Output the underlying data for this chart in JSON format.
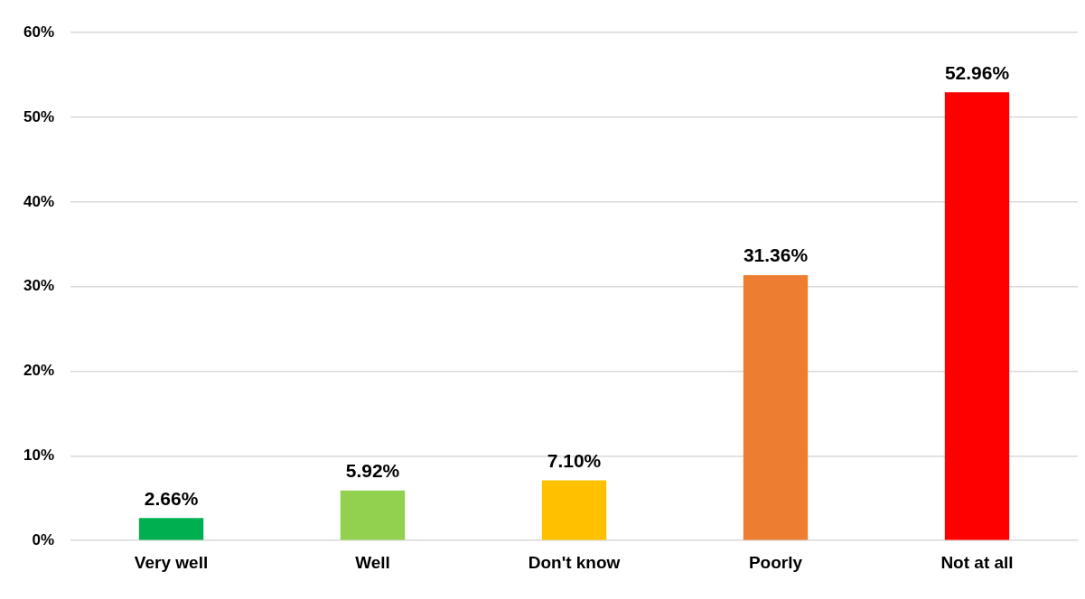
{
  "chart_data": {
    "type": "bar",
    "categories": [
      "Very well",
      "Well",
      "Don't know",
      "Poorly",
      "Not at all"
    ],
    "values": [
      2.66,
      5.92,
      7.1,
      31.36,
      52.96
    ],
    "colors": [
      "#00b050",
      "#92d050",
      "#ffc000",
      "#ed7d31",
      "#ff0000"
    ],
    "value_labels": [
      "2.66%",
      "5.92%",
      "7.10%",
      "31.36%",
      "52.96%"
    ],
    "ylim": [
      0,
      60
    ],
    "yticks": [
      {
        "value": 0,
        "label": "0%"
      },
      {
        "value": 10,
        "label": "10%"
      },
      {
        "value": 20,
        "label": "20%"
      },
      {
        "value": 30,
        "label": "30%"
      },
      {
        "value": 40,
        "label": "40%"
      },
      {
        "value": 50,
        "label": "50%"
      },
      {
        "value": 60,
        "label": "60%"
      }
    ],
    "grid": "y"
  }
}
